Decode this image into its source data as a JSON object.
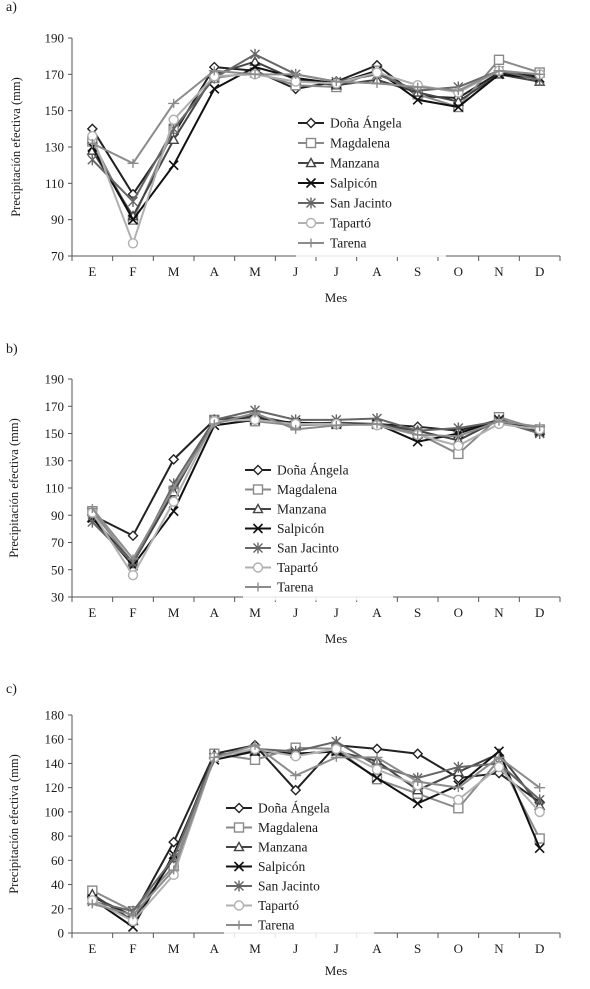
{
  "chart_data": [
    {
      "panel_label": "a)",
      "type": "line",
      "xlabel": "Mes",
      "ylabel": "Precipitación efectiva (mm)",
      "categories": [
        "E",
        "F",
        "M",
        "A",
        "M",
        "J",
        "J",
        "A",
        "S",
        "O",
        "N",
        "D"
      ],
      "ylim": [
        70,
        190
      ],
      "yticks": [
        70,
        90,
        110,
        130,
        150,
        170,
        190
      ],
      "legend_position": "center-right",
      "grid": false,
      "series": [
        {
          "name": "Doña Ángela",
          "marker": "diamond",
          "color": "#222222",
          "values": [
            140,
            104,
            137,
            174,
            172,
            162,
            166,
            175,
            158,
            157,
            171,
            169
          ]
        },
        {
          "name": "Magdalena",
          "marker": "square",
          "color": "#8a8a8a",
          "values": [
            133,
            90,
            140,
            168,
            171,
            164,
            163,
            172,
            159,
            152,
            178,
            171
          ]
        },
        {
          "name": "Manzana",
          "marker": "triangle",
          "color": "#444444",
          "values": [
            128,
            92,
            134,
            170,
            177,
            167,
            164,
            167,
            160,
            155,
            170,
            166
          ]
        },
        {
          "name": "Salpicón",
          "marker": "x",
          "color": "#111111",
          "values": [
            130,
            90,
            120,
            162,
            174,
            168,
            165,
            172,
            156,
            152,
            170,
            168
          ]
        },
        {
          "name": "San Jacinto",
          "marker": "star",
          "color": "#666666",
          "values": [
            123,
            100,
            140,
            168,
            181,
            170,
            166,
            170,
            161,
            163,
            172,
            167
          ]
        },
        {
          "name": "Tapartó",
          "marker": "circle",
          "color": "#b0b0b0",
          "values": [
            136,
            77,
            145,
            169,
            170,
            166,
            165,
            171,
            164,
            160,
            172,
            170
          ]
        },
        {
          "name": "Tarena",
          "marker": "plus",
          "color": "#8c8c8c",
          "values": [
            132,
            121,
            154,
            172,
            170,
            170,
            166,
            165,
            163,
            161,
            172,
            170
          ]
        }
      ]
    },
    {
      "panel_label": "b)",
      "type": "line",
      "xlabel": "Mes",
      "ylabel": "Precipitación efectiva (mm)",
      "categories": [
        "E",
        "F",
        "M",
        "A",
        "M",
        "J",
        "J",
        "A",
        "S",
        "O",
        "N",
        "D"
      ],
      "ylim": [
        30,
        190
      ],
      "yticks": [
        30,
        50,
        70,
        90,
        110,
        130,
        150,
        170,
        190
      ],
      "legend_position": "bottom-right",
      "grid": false,
      "series": [
        {
          "name": "Doña Ángela",
          "marker": "diamond",
          "color": "#222222",
          "values": [
            90,
            75,
            131,
            160,
            162,
            157,
            157,
            157,
            155,
            152,
            160,
            152
          ]
        },
        {
          "name": "Magdalena",
          "marker": "square",
          "color": "#8a8a8a",
          "values": [
            93,
            55,
            108,
            160,
            159,
            156,
            157,
            157,
            150,
            135,
            162,
            153
          ]
        },
        {
          "name": "Manzana",
          "marker": "triangle",
          "color": "#444444",
          "values": [
            88,
            55,
            107,
            160,
            163,
            157,
            158,
            157,
            152,
            145,
            160,
            152
          ]
        },
        {
          "name": "Salpicón",
          "marker": "x",
          "color": "#111111",
          "values": [
            88,
            53,
            93,
            156,
            160,
            158,
            157,
            157,
            144,
            150,
            160,
            151
          ]
        },
        {
          "name": "San Jacinto",
          "marker": "star",
          "color": "#666666",
          "values": [
            85,
            55,
            113,
            160,
            167,
            160,
            160,
            161,
            152,
            154,
            159,
            150
          ]
        },
        {
          "name": "Tapartó",
          "marker": "circle",
          "color": "#b0b0b0",
          "values": [
            92,
            46,
            100,
            159,
            160,
            157,
            157,
            156,
            149,
            141,
            157,
            153
          ]
        },
        {
          "name": "Tarena",
          "marker": "plus",
          "color": "#8c8c8c",
          "values": [
            95,
            58,
            110,
            157,
            165,
            153,
            156,
            157,
            149,
            148,
            159,
            155
          ]
        }
      ]
    },
    {
      "panel_label": "c)",
      "type": "line",
      "xlabel": "Mes",
      "ylabel": "Precipitación efectiva (mm)",
      "categories": [
        "E",
        "F",
        "M",
        "A",
        "M",
        "J",
        "J",
        "A",
        "S",
        "O",
        "N",
        "D"
      ],
      "ylim": [
        0,
        180
      ],
      "yticks": [
        0,
        20,
        40,
        60,
        80,
        100,
        120,
        140,
        160,
        180
      ],
      "legend_position": "center",
      "grid": false,
      "series": [
        {
          "name": "Doña Ángela",
          "marker": "diamond",
          "color": "#222222",
          "values": [
            30,
            14,
            75,
            148,
            155,
            118,
            155,
            152,
            148,
            128,
            132,
            108
          ]
        },
        {
          "name": "Magdalena",
          "marker": "square",
          "color": "#8a8a8a",
          "values": [
            35,
            18,
            55,
            148,
            143,
            153,
            152,
            127,
            115,
            103,
            143,
            78
          ]
        },
        {
          "name": "Manzana",
          "marker": "triangle",
          "color": "#444444",
          "values": [
            32,
            10,
            62,
            147,
            150,
            148,
            150,
            142,
            118,
            133,
            148,
            105
          ]
        },
        {
          "name": "Salpicón",
          "marker": "x",
          "color": "#111111",
          "values": [
            28,
            5,
            65,
            143,
            150,
            148,
            150,
            128,
            107,
            122,
            150,
            70
          ]
        },
        {
          "name": "San Jacinto",
          "marker": "star",
          "color": "#666666",
          "values": [
            26,
            18,
            62,
            145,
            152,
            150,
            158,
            138,
            128,
            137,
            140,
            110
          ]
        },
        {
          "name": "Tapartó",
          "marker": "circle",
          "color": "#b0b0b0",
          "values": [
            27,
            10,
            48,
            145,
            152,
            146,
            152,
            135,
            122,
            110,
            137,
            100
          ]
        },
        {
          "name": "Tarena",
          "marker": "plus",
          "color": "#8c8c8c",
          "values": [
            24,
            15,
            52,
            145,
            155,
            130,
            145,
            145,
            125,
            120,
            145,
            120
          ]
        }
      ]
    }
  ]
}
